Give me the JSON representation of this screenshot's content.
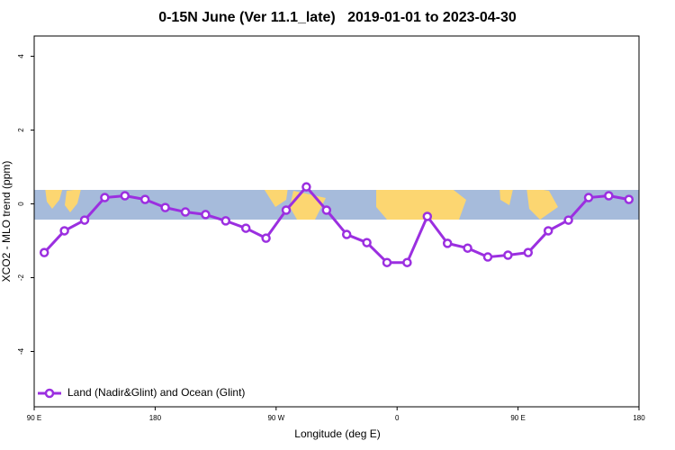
{
  "chart_data": {
    "type": "line",
    "title": "0-15N June (Ver 11.1_late)   2019-01-01 to 2023-04-30",
    "x_label": "Longitude (deg E)",
    "y_label": "XCO2 - MLO trend (ppm)",
    "xlim": [
      90,
      540
    ],
    "xticks": [
      {
        "value": 90,
        "label": "90 E"
      },
      {
        "value": 180,
        "label": "180"
      },
      {
        "value": 270,
        "label": "90 W"
      },
      {
        "value": 360,
        "label": "0"
      },
      {
        "value": 450,
        "label": "90 E"
      },
      {
        "value": 540,
        "label": "180"
      }
    ],
    "ylim": [
      -5.5,
      4.55
    ],
    "yticks": [
      4,
      2,
      0,
      -2,
      -4
    ],
    "legend": "bottom-left",
    "series": [
      {
        "name": "Land (Nadir&Glint) and Ocean (Glint)",
        "color": "#9b2fe0",
        "x": [
          97.5,
          112.5,
          127.5,
          142.5,
          157.5,
          172.5,
          187.5,
          202.5,
          217.5,
          232.5,
          247.5,
          262.5,
          277.5,
          292.5,
          307.5,
          322.5,
          337.5,
          352.5,
          367.5,
          382.5,
          397.5,
          412.5,
          427.5,
          442.5,
          457.5,
          472.5,
          487.5,
          502.5,
          517.5,
          532.5
        ],
        "values": [
          -1.32,
          -0.73,
          -0.44,
          0.17,
          0.22,
          0.12,
          -0.1,
          -0.22,
          -0.29,
          -0.46,
          -0.66,
          -0.93,
          -0.17,
          0.46,
          -0.17,
          -0.83,
          -1.05,
          -1.59,
          -1.59,
          -0.34,
          -1.07,
          -1.2,
          -1.44,
          -1.39,
          -1.32,
          -0.73,
          -0.44,
          0.17,
          0.22,
          0.12
        ]
      }
    ]
  }
}
